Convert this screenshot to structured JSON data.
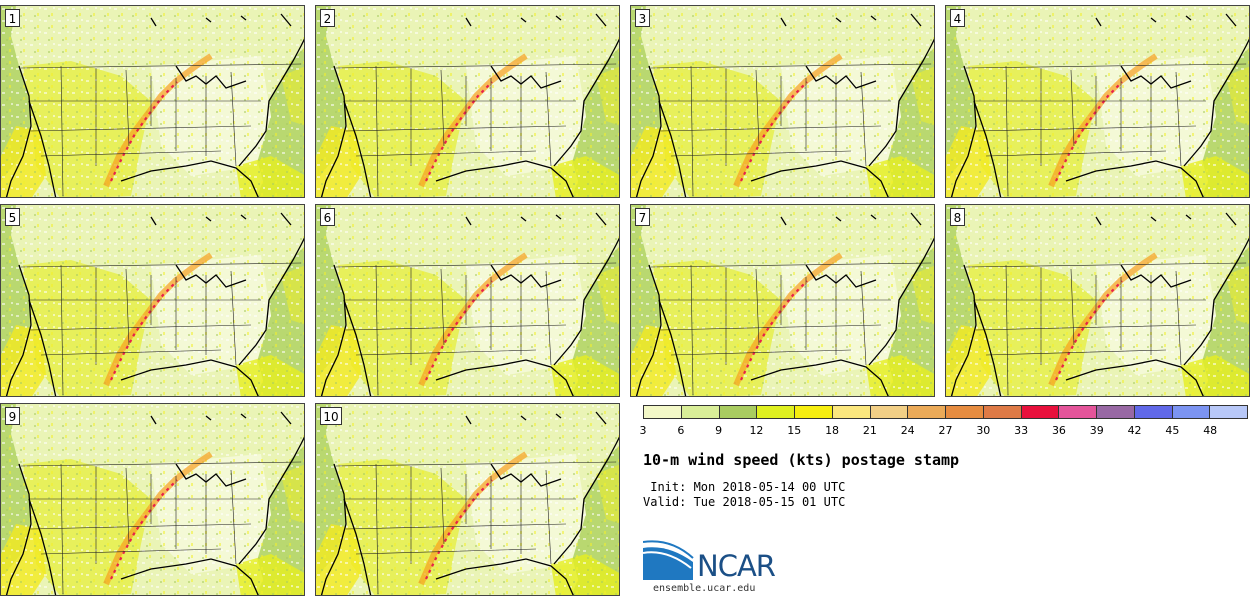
{
  "panels": [
    {
      "label": "1"
    },
    {
      "label": "2"
    },
    {
      "label": "3"
    },
    {
      "label": "4"
    },
    {
      "label": "5"
    },
    {
      "label": "6"
    },
    {
      "label": "7"
    },
    {
      "label": "8"
    },
    {
      "label": "9"
    },
    {
      "label": "10"
    }
  ],
  "legend": {
    "ticks": [
      "3",
      "6",
      "9",
      "12",
      "15",
      "18",
      "21",
      "24",
      "27",
      "30",
      "33",
      "36",
      "39",
      "42",
      "45",
      "48"
    ],
    "colors": [
      "#f3f8c8",
      "#d9ee98",
      "#a9cc60",
      "#dff020",
      "#f6ee10",
      "#fbe77e",
      "#f2cf86",
      "#ebaa58",
      "#e68c40",
      "#de7a46",
      "#e8103c",
      "#e4549a",
      "#9868a4",
      "#6068e8",
      "#7c94f2",
      "#b8c8f8"
    ]
  },
  "title": "10-m wind speed (kts) postage stamp",
  "init": " Init: Mon 2018-05-14 00 UTC",
  "valid": "Valid: Tue 2018-05-15 01 UTC",
  "logo_text": "NCAR",
  "website": "ensemble.ucar.edu"
}
